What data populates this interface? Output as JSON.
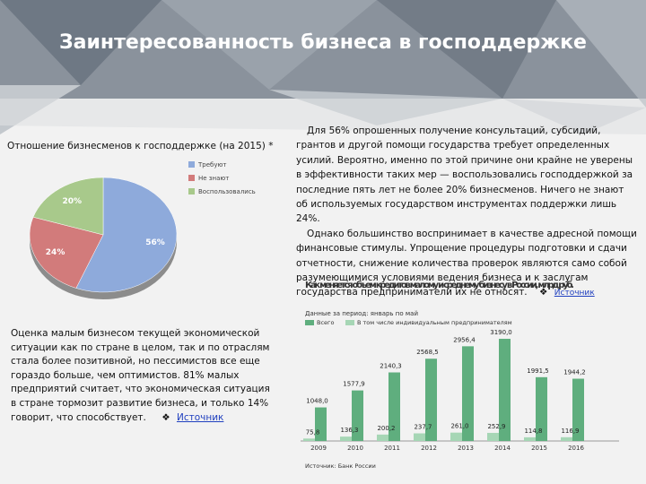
{
  "header": {
    "title": "Заинтересованность бизнеса в господдержке"
  },
  "chart_data": [
    {
      "type": "pie",
      "title": "Отношение бизнесменов к господдержке (на 2015) *",
      "categories": [
        "Требуют",
        "Не знают",
        "Воспользовались"
      ],
      "values": [
        56,
        24,
        20
      ],
      "value_labels": [
        "56%",
        "24%",
        "20%"
      ],
      "colors": [
        "#8eaadb",
        "#d27b7b",
        "#a8c98b"
      ],
      "legend": "right"
    },
    {
      "type": "bar",
      "title": "Как меняется объем кредитов малому и среднему бизнесу в России, млрд руб.",
      "subtitle": "Данные за период: январь по май",
      "categories": [
        "2009",
        "2010",
        "2011",
        "2012",
        "2013",
        "2014",
        "2015",
        "2016"
      ],
      "series": [
        {
          "name": "Всего",
          "color": "#5fae7e",
          "values": [
            1048.0,
            1577.9,
            2140.3,
            2568.5,
            2956.4,
            3190.0,
            1991.5,
            1944.2
          ],
          "value_labels": [
            "1048,0",
            "1577,9",
            "2140,3",
            "2568,5",
            "2956,4",
            "3190,0",
            "1991,5",
            "1944,2"
          ]
        },
        {
          "name": "В том числе индивидуальным предпринимателям",
          "color": "#a6d6b5",
          "values": [
            75.8,
            136.3,
            200.2,
            237.7,
            261.0,
            252.9,
            114.8,
            116.9
          ],
          "value_labels": [
            "75,8",
            "136,3",
            "200,2",
            "237,7",
            "261,0",
            "252,9",
            "114,8",
            "116,9"
          ]
        }
      ],
      "note": "Источник: Банк России",
      "legend": "top-left"
    }
  ],
  "text_right": {
    "paragraphs": [
      "Для 56% опрошенных получение консультаций, субсидий, грантов и другой помощи государства требует определенных усилий. Вероятно, именно по этой причине они крайне не уверены в эффективности таких мер — воспользовались господдержкой за последние пять лет не более 20% бизнесменов. Ничего не знают об используемых государством инструментах поддержки лишь 24%.",
      "Однако большинство воспринимает в качестве адресной помощи финансовые стимулы. Упрощение процедуры подготовки и сдачи отчетности, снижение количества проверок являются само собой разумеющимися условиями ведения бизнеса и к заслугам государства предприниматели их не относят."
    ],
    "source_icon": "❖",
    "source": "Источник"
  },
  "text_left": {
    "paragraph": "Оценка малым бизнесом текущей экономической ситуации как по стране в целом, так и по отраслям стала более позитивной, но пессимистов все еще гораздо больше, чем оптимистов. 81% малых предприятий считает, что экономическая ситуация в стране тормозит развитие бизнеса, и только 14% говорит, что способствует.",
    "source_icon": "❖",
    "source": "Источник"
  }
}
